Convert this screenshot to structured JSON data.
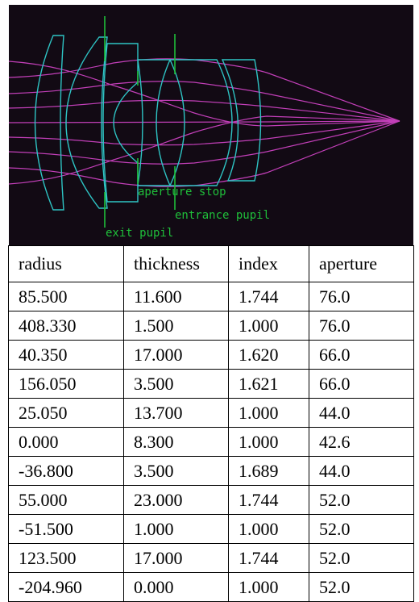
{
  "diagram": {
    "labels": {
      "aperture_stop": "aperture stop",
      "entrance_pupil": "entrance pupil",
      "exit_pupil": "exit pupil"
    },
    "colors": {
      "background": "#120a14",
      "lens": "#2ec4c4",
      "rays": "#c23fb8",
      "markers": "#1fbf3a"
    }
  },
  "table": {
    "headers": [
      "radius",
      "thickness",
      "index",
      "aperture"
    ],
    "rows": [
      [
        "85.500",
        "11.600",
        "1.744",
        "76.0"
      ],
      [
        "408.330",
        "1.500",
        "1.000",
        "76.0"
      ],
      [
        "40.350",
        "17.000",
        "1.620",
        "66.0"
      ],
      [
        "156.050",
        "3.500",
        "1.621",
        "66.0"
      ],
      [
        "25.050",
        "13.700",
        "1.000",
        "44.0"
      ],
      [
        "0.000",
        "8.300",
        "1.000",
        "42.6"
      ],
      [
        "-36.800",
        "3.500",
        "1.689",
        "44.0"
      ],
      [
        "55.000",
        "23.000",
        "1.744",
        "52.0"
      ],
      [
        "-51.500",
        "1.000",
        "1.000",
        "52.0"
      ],
      [
        "123.500",
        "17.000",
        "1.744",
        "52.0"
      ],
      [
        "-204.960",
        "0.000",
        "1.000",
        "52.0"
      ]
    ]
  }
}
